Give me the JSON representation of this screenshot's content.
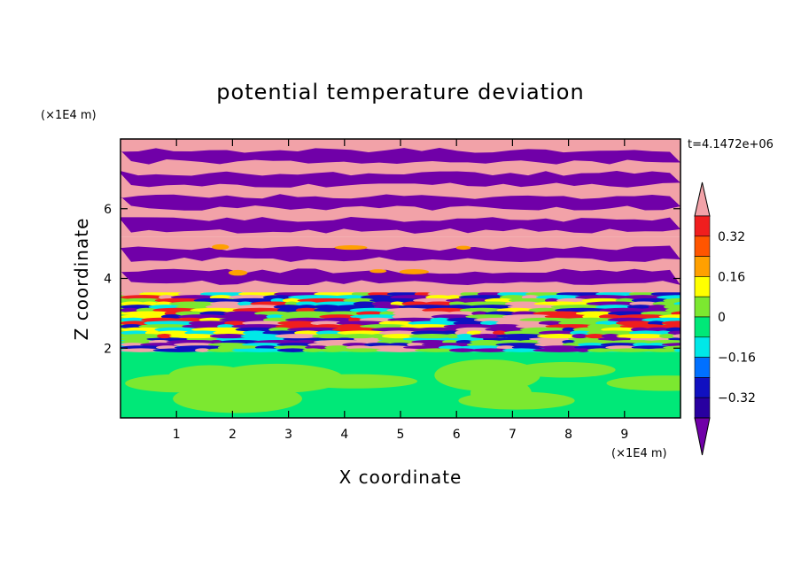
{
  "chart_data": {
    "type": "heatmap",
    "title": "potential temperature deviation",
    "xlabel": "X coordinate",
    "ylabel": "Z coordinate",
    "x_unit": "(×1E4 m)",
    "y_unit": "(×1E4 m)",
    "time_label": "t=4.1472e+06",
    "xlim": [
      0,
      10
    ],
    "ylim": [
      0,
      8
    ],
    "x_ticks": [
      1,
      2,
      3,
      4,
      5,
      6,
      7,
      8,
      9
    ],
    "y_ticks": [
      2,
      4,
      6
    ],
    "colorbar": {
      "levels": [
        -0.4,
        -0.32,
        -0.24,
        -0.16,
        -0.08,
        0,
        0.08,
        0.16,
        0.24,
        0.32,
        0.4
      ],
      "labels": [
        "0.32",
        "0.16",
        "0",
        "−0.16",
        "−0.32"
      ],
      "label_values": [
        0.32,
        0.16,
        0,
        -0.16,
        -0.32
      ],
      "colors_top_to_bottom": [
        "#f2a2a8",
        "#f01e1e",
        "#ff5500",
        "#ffa000",
        "#ffff00",
        "#7ce830",
        "#00e878",
        "#00e8e8",
        "#0070ff",
        "#1010c0",
        "#2800a0",
        "#7000a8"
      ],
      "extend": "both"
    },
    "bands": [
      {
        "z0": 0.0,
        "z1": 1.9,
        "pattern": "calm",
        "colors": [
          "#00e878",
          "#7ce830"
        ]
      },
      {
        "z0": 1.9,
        "z1": 2.3,
        "pattern": "mixed",
        "colors": [
          "#00e8e8",
          "#1010c0",
          "#f2a2a8",
          "#7000a8",
          "#7ce830"
        ]
      },
      {
        "z0": 2.3,
        "z1": 3.6,
        "pattern": "turbulent",
        "colors": [
          "#7ce830",
          "#ffff00",
          "#f01e1e",
          "#1010c0",
          "#00e8e8",
          "#7000a8",
          "#f2a2a8"
        ]
      },
      {
        "z0": 3.6,
        "z1": 5.2,
        "pattern": "stripes",
        "colors": [
          "#f2a2a8",
          "#7000a8",
          "#ffa000"
        ]
      },
      {
        "z0": 5.2,
        "z1": 8.0,
        "pattern": "stripes",
        "colors": [
          "#f2a2a8",
          "#7000a8"
        ]
      }
    ]
  }
}
